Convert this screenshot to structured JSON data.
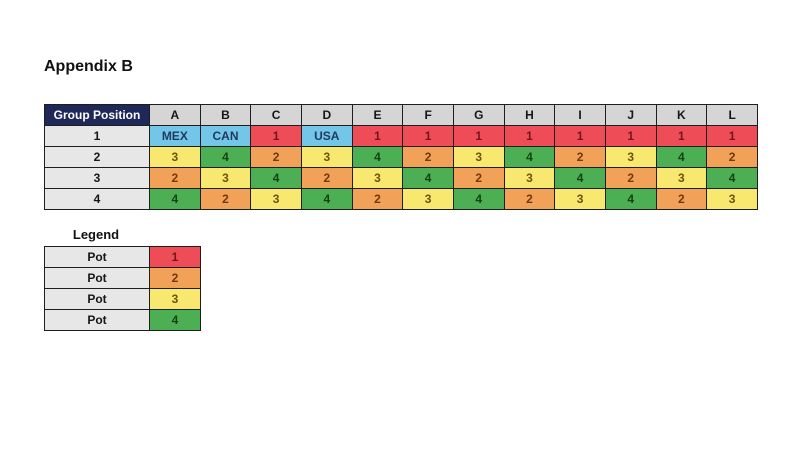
{
  "title": "Appendix B",
  "colors": {
    "header_bg": "#1e2859",
    "header_text": "#ffffff",
    "col_header_bg": "#d5d5d5",
    "row_label_bg": "#e7e7e7",
    "pot1": "#ee4d57",
    "pot2": "#f2a159",
    "pot3": "#f8e870",
    "pot4": "#4daf53",
    "country": "#74c6e8"
  },
  "table": {
    "corner_label": "Group Position",
    "columns": [
      "A",
      "B",
      "C",
      "D",
      "E",
      "F",
      "G",
      "H",
      "I",
      "J",
      "K",
      "L"
    ],
    "rows": [
      {
        "label": "1",
        "values": [
          "MEX",
          "CAN",
          "1",
          "USA",
          "1",
          "1",
          "1",
          "1",
          "1",
          "1",
          "1",
          "1"
        ]
      },
      {
        "label": "2",
        "values": [
          "3",
          "4",
          "2",
          "3",
          "4",
          "2",
          "3",
          "4",
          "2",
          "3",
          "4",
          "2"
        ]
      },
      {
        "label": "3",
        "values": [
          "2",
          "3",
          "4",
          "2",
          "3",
          "4",
          "2",
          "3",
          "4",
          "2",
          "3",
          "4"
        ]
      },
      {
        "label": "4",
        "values": [
          "4",
          "2",
          "3",
          "4",
          "2",
          "3",
          "4",
          "2",
          "3",
          "4",
          "2",
          "3"
        ]
      }
    ],
    "cell_styles": {
      "MEX": "country",
      "CAN": "country",
      "USA": "country",
      "1": "pot1",
      "2": "pot2",
      "3": "pot3",
      "4": "pot4"
    }
  },
  "legend": {
    "title": "Legend",
    "rows": [
      {
        "label": "Pot",
        "value": "1"
      },
      {
        "label": "Pot",
        "value": "2"
      },
      {
        "label": "Pot",
        "value": "3"
      },
      {
        "label": "Pot",
        "value": "4"
      }
    ]
  }
}
